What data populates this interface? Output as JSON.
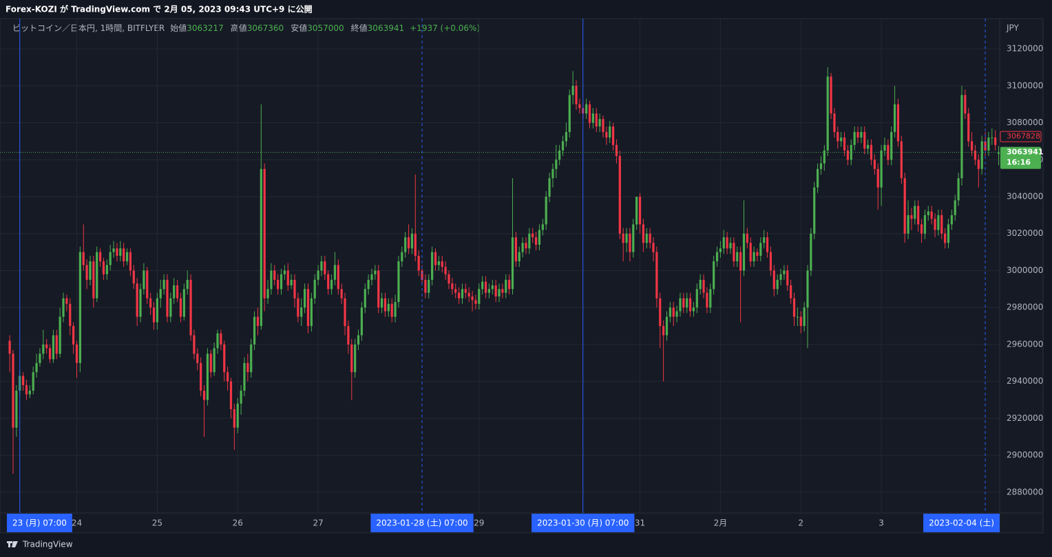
{
  "publish_note": "Forex-KOZI が TradingView.com で 2月 05, 2023 09:43 UTC+9 に公開",
  "footer": "TradingView",
  "chart_data": {
    "type": "candlestick",
    "title": "ビットコイン／日本円, 1時間, BITFLYER",
    "ohlc_labels": [
      "始値",
      "高値",
      "安値",
      "終値"
    ],
    "ohlc_values": [
      3063217,
      3067360,
      3057000,
      3063941
    ],
    "change": "+1937 (+0.06%)",
    "currency": "JPY",
    "colors": {
      "up": "#4caf50",
      "down": "#f23645",
      "marker": "#2962ff"
    },
    "grid": true,
    "ylim": [
      2868800,
      3136400
    ],
    "yticks": [
      2880000,
      2900000,
      2920000,
      2940000,
      2960000,
      2980000,
      3000000,
      3020000,
      3040000,
      3060000,
      3080000,
      3100000,
      3120000
    ],
    "xlim": [
      -2.9,
      295.3
    ],
    "xticks": [
      {
        "value": 20,
        "label": "24"
      },
      {
        "value": 44,
        "label": "25"
      },
      {
        "value": 68,
        "label": "26"
      },
      {
        "value": 92,
        "label": "27"
      },
      {
        "value": 140,
        "label": "29"
      },
      {
        "value": 188,
        "label": "31"
      },
      {
        "value": 212,
        "label": "2月"
      },
      {
        "value": 236,
        "label": "2"
      },
      {
        "value": 260,
        "label": "3"
      }
    ],
    "time_markers": [
      {
        "value": 3,
        "label": "23 (月)  07:00",
        "style": "solid"
      },
      {
        "value": 123,
        "label": "2023-01-28 (土)  07:00",
        "style": "dashed"
      },
      {
        "value": 171,
        "label": "2023-01-30 (月)  07:00",
        "style": "solid"
      },
      {
        "value": 291,
        "label": "2023-02-04 (土)",
        "style": "dashed"
      }
    ],
    "last_price": {
      "value": 3063941,
      "countdown": "16:16"
    },
    "alert_price": 3067828,
    "open": [
      2962000,
      2955000,
      2915000,
      2935000,
      2943000,
      2938000,
      2933000,
      2935000,
      2945000,
      2950000,
      2955000,
      2960000,
      2958000,
      2952000,
      2965000,
      2955000,
      2975000,
      2985000,
      2982000,
      2970000,
      2960000,
      2950000,
      3010000,
      3003000,
      2995000,
      3005000,
      2985000,
      3010000,
      3005000,
      2998000,
      3003000,
      3010000,
      3012000,
      3008000,
      3012000,
      3005000,
      3010000,
      3000000,
      2993000,
      2975000,
      2990000,
      3000000,
      2985000,
      2980000,
      2972000,
      2985000,
      2990000,
      2995000,
      2975000,
      2985000,
      2992000,
      2985000,
      2975000,
      2990000,
      2995000,
      2965000,
      2955000,
      2950000,
      2935000,
      2930000,
      2955000,
      2945000,
      2958000,
      2966000,
      2960000,
      2945000,
      2940000,
      2925000,
      2915000,
      2928000,
      2935000,
      2950000,
      2945000,
      2960000,
      2975000,
      2970000,
      3055000,
      2985000,
      2990000,
      3000000,
      2995000,
      2990000,
      2998000,
      3000000,
      2992000,
      2995000,
      2985000,
      2975000,
      2980000,
      2990000,
      2970000,
      2985000,
      2995000,
      3000000,
      3005000,
      2998000,
      2990000,
      2995000,
      3003000,
      2990000,
      2985000,
      2970000,
      2960000,
      2945000,
      2960000,
      2965000,
      2980000,
      2990000,
      2995000,
      2998000,
      3000000,
      2980000,
      2985000,
      2978000,
      2982000,
      2975000,
      2983000,
      3005000,
      3010000,
      3018000,
      3012000,
      3020000,
      3008000,
      3000000,
      2995000,
      2988000,
      2995000,
      3010000,
      3003000,
      3005000,
      3002000,
      2998000,
      2993000,
      2990000,
      2988000,
      2985000,
      2990000,
      2988000,
      2986000,
      2984000,
      2982000,
      2990000,
      2994000,
      2988000,
      2990000,
      2992000,
      2986000,
      2990000,
      2988000,
      2995000,
      2990000,
      3018000,
      3005000,
      3010000,
      3015000,
      3012000,
      3020000,
      3018000,
      3014000,
      3022000,
      3025000,
      3040000,
      3050000,
      3055000,
      3060000,
      3065000,
      3070000,
      3075000,
      3095000,
      3100000,
      3090000,
      3088000,
      3085000,
      3090000,
      3080000,
      3085000,
      3078000,
      3082000,
      3075000,
      3072000,
      3078000,
      3068000,
      3062000,
      3020000,
      3015000,
      3020000,
      3010000,
      3025000,
      3040000,
      3025000,
      3015000,
      3020000,
      3015000,
      3010000,
      2985000,
      2970000,
      2965000,
      2975000,
      2980000,
      2975000,
      2978000,
      2985000,
      2980000,
      2985000,
      2978000,
      2980000,
      2990000,
      2995000,
      2988000,
      2980000,
      2990000,
      3005000,
      3010000,
      3012000,
      3018000,
      3012000,
      3015000,
      3005000,
      3010000,
      3000000,
      3020000,
      3015000,
      3005000,
      3010000,
      3008000,
      3015000,
      3018000,
      3010000,
      3000000,
      2990000,
      2995000,
      2998000,
      3000000,
      2992000,
      2985000,
      2975000,
      2975000,
      2970000,
      2980000,
      3000000,
      3020000,
      3045000,
      3055000,
      3058000,
      3065000,
      3105000,
      3085000,
      3075000,
      3070000,
      3072000,
      3065000,
      3060000,
      3068000,
      3075000,
      3072000,
      3075000,
      3066000,
      3068000,
      3060000,
      3055000,
      3045000,
      3065000,
      3068000,
      3060000,
      3075000,
      3090000,
      3070000,
      3050000,
      3020000,
      3030000,
      3028000,
      3035000,
      3025000,
      3020000,
      3030000,
      3032000,
      3028000,
      3022000,
      3030000,
      3020000,
      3015000,
      3025000,
      3030000,
      3038000,
      3050000,
      3095000,
      3085000,
      3070000,
      3065000,
      3060000,
      3055000,
      3070000,
      3065000,
      3072000,
      3072000,
      3063217
    ],
    "high": [
      2965000,
      2957000,
      2938000,
      2946000,
      2945000,
      2941000,
      2938000,
      2948000,
      2955000,
      2958000,
      2968000,
      2963000,
      2960000,
      2968000,
      2968000,
      2980000,
      2988000,
      2987000,
      2985000,
      2972000,
      2962000,
      3013000,
      3025000,
      3006000,
      3008000,
      3008000,
      3013000,
      3012000,
      3007000,
      3006000,
      3014000,
      3016000,
      3015000,
      3016000,
      3015000,
      3012000,
      3012000,
      3003000,
      2996000,
      2993000,
      3004000,
      3002000,
      2988000,
      2983000,
      2988000,
      2995000,
      2998000,
      2998000,
      2988000,
      2996000,
      2995000,
      2988000,
      2993000,
      3000000,
      2998000,
      2968000,
      2958000,
      2953000,
      2938000,
      2958000,
      2957000,
      2961000,
      2968000,
      2968000,
      2962000,
      2948000,
      2942000,
      2928000,
      2931000,
      2938000,
      2953000,
      2955000,
      2963000,
      2978000,
      2980000,
      3090000,
      3058000,
      2995000,
      3004000,
      3003000,
      2998000,
      3001000,
      3003000,
      3004000,
      2998000,
      2998000,
      2988000,
      2985000,
      2993000,
      2993000,
      2988000,
      2998000,
      3003000,
      3008000,
      3008000,
      3000000,
      2998000,
      3010000,
      3006000,
      2993000,
      2988000,
      2973000,
      2963000,
      2963000,
      2968000,
      2983000,
      2993000,
      2998000,
      3001000,
      3003000,
      3003000,
      2988000,
      2988000,
      2985000,
      2985000,
      2987000,
      3008000,
      3013000,
      3021000,
      3025000,
      3023000,
      3052000,
      3011000,
      3003000,
      2998000,
      2998000,
      3013000,
      3012000,
      3008000,
      3008000,
      3005000,
      3000000,
      2996000,
      2993000,
      2991000,
      2993000,
      2993000,
      2991000,
      2989000,
      2987000,
      2993000,
      2997000,
      2997000,
      2993000,
      2995000,
      2995000,
      2993000,
      2993000,
      2998000,
      2998000,
      3050000,
      3021000,
      3013000,
      3018000,
      3018000,
      3023000,
      3023000,
      3021000,
      3025000,
      3028000,
      3043000,
      3053000,
      3058000,
      3068000,
      3068000,
      3073000,
      3080000,
      3098000,
      3108000,
      3103000,
      3093000,
      3091000,
      3093000,
      3092000,
      3088000,
      3088000,
      3085000,
      3084000,
      3078000,
      3081000,
      3080000,
      3071000,
      3065000,
      3023000,
      3023000,
      3023000,
      3028000,
      3040000,
      3042000,
      3028000,
      3023000,
      3023000,
      3018000,
      3013000,
      2988000,
      2973000,
      2978000,
      2983000,
      2983000,
      2981000,
      2988000,
      2988000,
      2988000,
      2988000,
      2983000,
      2993000,
      2998000,
      2998000,
      2991000,
      2993000,
      3008000,
      3013000,
      3016000,
      3022000,
      3021000,
      3018000,
      3018000,
      3013000,
      3013000,
      3038000,
      3023000,
      3018000,
      3013000,
      3012000,
      3018000,
      3022000,
      3021000,
      3013000,
      3003000,
      2998000,
      3001000,
      3003000,
      3003000,
      2995000,
      2988000,
      2980000,
      2978000,
      2983000,
      3003000,
      3023000,
      3048000,
      3058000,
      3062000,
      3068000,
      3110000,
      3107000,
      3088000,
      3078000,
      3075000,
      3075000,
      3068000,
      3071000,
      3078000,
      3078000,
      3078000,
      3078000,
      3071000,
      3071000,
      3063000,
      3058000,
      3068000,
      3072000,
      3071000,
      3078000,
      3100000,
      3093000,
      3073000,
      3053000,
      3038000,
      3034000,
      3038000,
      3038000,
      3028000,
      3033000,
      3035000,
      3035000,
      3031000,
      3033000,
      3033000,
      3023000,
      3028000,
      3033000,
      3041000,
      3053000,
      3100000,
      3098000,
      3088000,
      3075000,
      3068000,
      3063000,
      3073000,
      3075000,
      3075000,
      3077000,
      3076000,
      3067360
    ],
    "low": [
      2945000,
      2890000,
      2910000,
      2932000,
      2935000,
      2930000,
      2931000,
      2933000,
      2942000,
      2948000,
      2952000,
      2955000,
      2950000,
      2950000,
      2952000,
      2953000,
      2972000,
      2978000,
      2965000,
      2955000,
      2942000,
      2945000,
      3000000,
      2990000,
      2992000,
      2980000,
      2983000,
      3002000,
      2995000,
      2995000,
      3000000,
      3007000,
      3005000,
      3005000,
      3002000,
      3003000,
      2997000,
      2990000,
      2970000,
      2972000,
      2987000,
      2982000,
      2976000,
      2968000,
      2968000,
      2980000,
      2987000,
      2972000,
      2972000,
      2982000,
      2983000,
      2972000,
      2973000,
      2987000,
      2962000,
      2952000,
      2946000,
      2932000,
      2910000,
      2927000,
      2942000,
      2943000,
      2955000,
      2957000,
      2940000,
      2935000,
      2920000,
      2903000,
      2912000,
      2922000,
      2932000,
      2940000,
      2942000,
      2957000,
      2965000,
      2968000,
      2978000,
      2982000,
      2987000,
      2992000,
      2987000,
      2987000,
      2995000,
      2989000,
      2990000,
      2980000,
      2972000,
      2970000,
      2977000,
      2966000,
      2967000,
      2982000,
      2992000,
      2997000,
      2995000,
      2987000,
      2987000,
      2992000,
      2987000,
      2982000,
      2965000,
      2955000,
      2930000,
      2942000,
      2957000,
      2962000,
      2977000,
      2987000,
      2992000,
      2995000,
      2977000,
      2977000,
      2975000,
      2975000,
      2972000,
      2972000,
      2980000,
      3002000,
      3007000,
      3009000,
      3009000,
      3005000,
      2997000,
      2992000,
      2985000,
      2985000,
      2992000,
      3000000,
      3000000,
      2999000,
      2995000,
      2990000,
      2987000,
      2985000,
      2982000,
      2982000,
      2985000,
      2983000,
      2978000,
      2979000,
      2979000,
      2987000,
      2985000,
      2985000,
      2987000,
      2983000,
      2983000,
      2985000,
      2985000,
      2987000,
      2987000,
      3002000,
      3002000,
      3007000,
      3009000,
      3009000,
      3015000,
      3011000,
      3011000,
      3019000,
      3022000,
      3037000,
      3045000,
      3050000,
      3057000,
      3062000,
      3067000,
      3072000,
      3090000,
      3087000,
      3085000,
      3082000,
      3082000,
      3077000,
      3077000,
      3075000,
      3075000,
      3072000,
      3068000,
      3069000,
      3065000,
      3058000,
      3017000,
      3005000,
      3010000,
      3005000,
      3007000,
      3022000,
      3020000,
      3010000,
      3012000,
      3012000,
      3005000,
      2980000,
      2958000,
      2940000,
      2962000,
      2972000,
      2970000,
      2972000,
      2975000,
      2977000,
      2977000,
      2975000,
      2975000,
      2977000,
      2987000,
      2985000,
      2977000,
      2977000,
      2987000,
      3002000,
      3007000,
      3009000,
      3009000,
      3009000,
      3002000,
      3002000,
      2972000,
      2997000,
      3012000,
      3002000,
      3002000,
      3005000,
      3005000,
      3012000,
      3007000,
      2997000,
      2986000,
      2987000,
      2992000,
      2995000,
      2989000,
      2982000,
      2970000,
      2970000,
      2966000,
      2967000,
      2958000,
      2997000,
      3017000,
      3042000,
      3052000,
      3054000,
      3062000,
      3082000,
      3072000,
      3066000,
      3067000,
      3062000,
      3057000,
      3057000,
      3065000,
      3069000,
      3069000,
      3063000,
      3063000,
      3057000,
      3052000,
      3033000,
      3035000,
      3062000,
      3057000,
      3057000,
      3072000,
      3067000,
      3047000,
      3015000,
      3017000,
      3022000,
      3025000,
      3021000,
      3015000,
      3017000,
      3027000,
      3025000,
      3018000,
      3019000,
      3017000,
      3012000,
      3012000,
      3022000,
      3027000,
      3035000,
      3046000,
      3082000,
      3067000,
      3062000,
      3057000,
      3045000,
      3052000,
      3062000,
      3062000,
      3068000,
      3065000,
      3057000
    ],
    "close": [
      2955000,
      2915000,
      2935000,
      2943000,
      2938000,
      2933000,
      2935000,
      2945000,
      2950000,
      2955000,
      2960000,
      2958000,
      2952000,
      2965000,
      2955000,
      2975000,
      2985000,
      2982000,
      2970000,
      2960000,
      2950000,
      3010000,
      3003000,
      2995000,
      3005000,
      2985000,
      3010000,
      3005000,
      2998000,
      3003000,
      3010000,
      3012000,
      3008000,
      3012000,
      3005000,
      3010000,
      3000000,
      2993000,
      2975000,
      2990000,
      3000000,
      2985000,
      2980000,
      2972000,
      2985000,
      2990000,
      2995000,
      2975000,
      2985000,
      2992000,
      2985000,
      2975000,
      2990000,
      2995000,
      2965000,
      2955000,
      2950000,
      2935000,
      2930000,
      2955000,
      2945000,
      2958000,
      2966000,
      2960000,
      2945000,
      2940000,
      2925000,
      2915000,
      2928000,
      2935000,
      2950000,
      2945000,
      2960000,
      2975000,
      2970000,
      3055000,
      2985000,
      2990000,
      3000000,
      2995000,
      2990000,
      2998000,
      3000000,
      2992000,
      2995000,
      2985000,
      2975000,
      2980000,
      2990000,
      2970000,
      2985000,
      2995000,
      3000000,
      3005000,
      2998000,
      2990000,
      2995000,
      3003000,
      2990000,
      2985000,
      2970000,
      2960000,
      2945000,
      2960000,
      2965000,
      2980000,
      2990000,
      2995000,
      2998000,
      3000000,
      2980000,
      2985000,
      2978000,
      2982000,
      2975000,
      2983000,
      3005000,
      3010000,
      3018000,
      3012000,
      3020000,
      3008000,
      3000000,
      2995000,
      2988000,
      2995000,
      3010000,
      3003000,
      3005000,
      3002000,
      2998000,
      2993000,
      2990000,
      2988000,
      2985000,
      2990000,
      2988000,
      2986000,
      2984000,
      2982000,
      2990000,
      2994000,
      2988000,
      2990000,
      2992000,
      2986000,
      2990000,
      2988000,
      2995000,
      2990000,
      3018000,
      3005000,
      3010000,
      3015000,
      3012000,
      3020000,
      3018000,
      3014000,
      3022000,
      3025000,
      3040000,
      3050000,
      3055000,
      3060000,
      3065000,
      3070000,
      3075000,
      3095000,
      3100000,
      3090000,
      3088000,
      3085000,
      3090000,
      3080000,
      3085000,
      3078000,
      3082000,
      3075000,
      3072000,
      3078000,
      3068000,
      3062000,
      3020000,
      3015000,
      3020000,
      3010000,
      3025000,
      3040000,
      3025000,
      3015000,
      3020000,
      3015000,
      3010000,
      2985000,
      2970000,
      2965000,
      2975000,
      2980000,
      2975000,
      2978000,
      2985000,
      2980000,
      2985000,
      2978000,
      2980000,
      2990000,
      2995000,
      2988000,
      2980000,
      2990000,
      3005000,
      3010000,
      3012000,
      3018000,
      3012000,
      3015000,
      3005000,
      3010000,
      3000000,
      3020000,
      3015000,
      3005000,
      3010000,
      3008000,
      3015000,
      3018000,
      3010000,
      3000000,
      2990000,
      2995000,
      2998000,
      3000000,
      2992000,
      2985000,
      2975000,
      2975000,
      2970000,
      2980000,
      3000000,
      3020000,
      3045000,
      3055000,
      3058000,
      3065000,
      3105000,
      3085000,
      3075000,
      3070000,
      3072000,
      3065000,
      3060000,
      3068000,
      3075000,
      3072000,
      3075000,
      3066000,
      3068000,
      3060000,
      3055000,
      3045000,
      3065000,
      3068000,
      3060000,
      3075000,
      3090000,
      3070000,
      3050000,
      3020000,
      3030000,
      3028000,
      3035000,
      3025000,
      3020000,
      3030000,
      3032000,
      3028000,
      3022000,
      3030000,
      3020000,
      3015000,
      3025000,
      3030000,
      3038000,
      3050000,
      3095000,
      3085000,
      3070000,
      3065000,
      3060000,
      3055000,
      3070000,
      3065000,
      3072000,
      3072000,
      3068000,
      3063941
    ]
  }
}
